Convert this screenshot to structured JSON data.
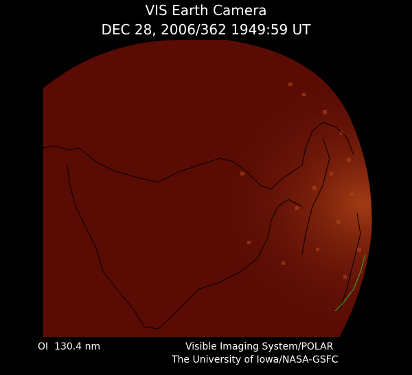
{
  "header": {
    "title": "VIS Earth Camera",
    "timestamp": "DEC 28, 2006/362 1949:59 UT"
  },
  "footer": {
    "wavelength": "OI  130.4 nm",
    "instrument": "Visible Imaging System/POLAR",
    "credit": "The University of Iowa/NASA-GSFC"
  }
}
